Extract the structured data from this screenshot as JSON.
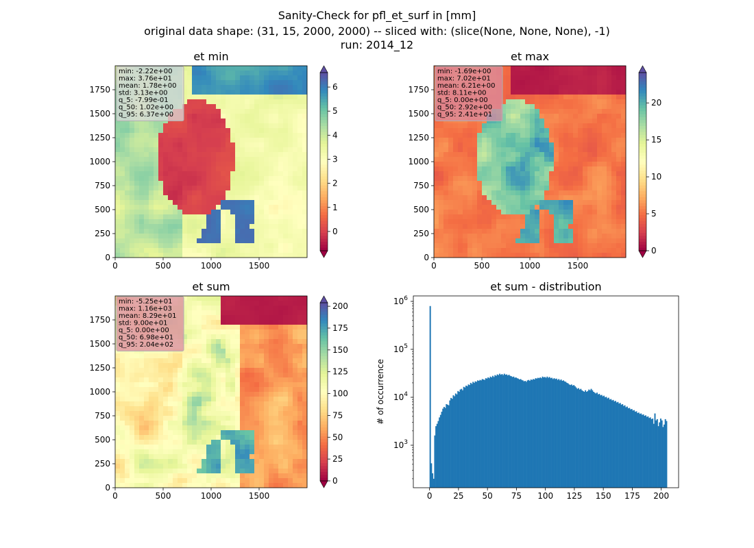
{
  "figure": {
    "title_lines": [
      "Sanity-Check for pfl_et_surf in [mm]",
      "original data shape: (31, 15, 2000, 2000) -- sliced with: (slice(None, None, None), -1)",
      "run: 2014_12"
    ]
  },
  "colormap": [
    "#9e0142",
    "#d53e4f",
    "#f46d43",
    "#fdae61",
    "#fee08b",
    "#ffffbf",
    "#e6f598",
    "#abdda4",
    "#66c2a5",
    "#3288bd",
    "#5e4fa2"
  ],
  "chart_data": [
    {
      "type": "heatmap",
      "id": "et_min",
      "title": "et min",
      "xticks": [
        0,
        500,
        1000,
        1500
      ],
      "yticks": [
        0,
        250,
        500,
        750,
        1000,
        1250,
        1500,
        1750
      ],
      "xlim": [
        0,
        2000
      ],
      "ylim": [
        0,
        2000
      ],
      "colorbar": {
        "vmin": -0.8,
        "vmax": 6.6,
        "ticks": [
          0,
          1,
          2,
          3,
          4,
          5,
          6
        ],
        "extend": "both"
      },
      "stats": [
        "min: -2.22e+00",
        "max: 3.76e+01",
        "mean: 1.78e+00",
        "std: 3.13e+00",
        "q_5: -7.99e-01",
        "q_50: 1.02e+00",
        "q_95: 6.37e+00"
      ]
    },
    {
      "type": "heatmap",
      "id": "et_max",
      "title": "et max",
      "xticks": [
        0,
        500,
        1000,
        1500
      ],
      "yticks": [
        0,
        250,
        500,
        750,
        1000,
        1250,
        1500,
        1750
      ],
      "xlim": [
        0,
        2000
      ],
      "ylim": [
        0,
        2000
      ],
      "colorbar": {
        "vmin": 0,
        "vmax": 24.1,
        "ticks": [
          0,
          5,
          10,
          15,
          20
        ],
        "extend": "both"
      },
      "stats": [
        "min: -1.69e+00",
        "max: 7.02e+01",
        "mean: 6.21e+00",
        "std: 8.11e+00",
        "q_5: 0.00e+00",
        "q_50: 2.92e+00",
        "q_95: 2.41e+01"
      ]
    },
    {
      "type": "heatmap",
      "id": "et_sum",
      "title": "et sum",
      "xticks": [
        0,
        500,
        1000,
        1500
      ],
      "yticks": [
        0,
        250,
        500,
        750,
        1000,
        1250,
        1500,
        1750
      ],
      "xlim": [
        0,
        2000
      ],
      "ylim": [
        0,
        2000
      ],
      "colorbar": {
        "vmin": 0,
        "vmax": 204,
        "ticks": [
          0,
          25,
          50,
          75,
          100,
          125,
          150,
          175,
          200
        ],
        "extend": "both"
      },
      "stats": [
        "min: -5.25e+01",
        "max: 1.16e+03",
        "mean: 8.29e+01",
        "std: 9.00e+01",
        "q_5: 0.00e+00",
        "q_50: 6.98e+01",
        "q_95: 2.04e+02"
      ]
    },
    {
      "type": "bar",
      "id": "et_sum_distribution",
      "title": "et sum - distribution",
      "ylabel": "# of occurrence",
      "yscale": "log",
      "xlim": [
        -14,
        215
      ],
      "ylim": [
        130,
        1300000
      ],
      "xticks": [
        0,
        25,
        50,
        75,
        100,
        125,
        150,
        175,
        200
      ],
      "yticks": [
        1000,
        10000,
        100000,
        1000000
      ],
      "ytick_labels": [
        [
          "10",
          "3"
        ],
        [
          "10",
          "4"
        ],
        [
          "10",
          "5"
        ],
        [
          "10",
          "6"
        ]
      ],
      "color": "#1f77b4",
      "bins": {
        "start": 0,
        "width": 1
      },
      "counts": [
        800000,
        420,
        260,
        200,
        1600,
        2500,
        2800,
        3200,
        3800,
        4300,
        5000,
        5800,
        6300,
        6000,
        7200,
        7000,
        6800,
        8600,
        9700,
        9300,
        11000,
        10500,
        12000,
        11500,
        13500,
        13000,
        14500,
        15000,
        14000,
        16500,
        16000,
        17500,
        17000,
        18500,
        18000,
        20000,
        19000,
        21000,
        20000,
        21500,
        21000,
        22500,
        22000,
        23000,
        22500,
        24000,
        23500,
        23000,
        25000,
        24500,
        26000,
        25000,
        27000,
        26000,
        28000,
        26500,
        29000,
        28000,
        30000,
        29000,
        31000,
        29500,
        30500,
        29000,
        31000,
        29500,
        30000,
        28500,
        29500,
        28000,
        27500,
        26500,
        27000,
        25500,
        26000,
        25000,
        24500,
        23500,
        24000,
        23000,
        22500,
        21500,
        22000,
        21000,
        22500,
        23000,
        22000,
        23500,
        23000,
        24000,
        23500,
        25000,
        24500,
        25500,
        25000,
        26000,
        25000,
        27000,
        26000,
        26500,
        25500,
        27000,
        25500,
        26500,
        25000,
        25500,
        24000,
        25000,
        24000,
        24500,
        23000,
        24000,
        22500,
        23500,
        22000,
        22500,
        21500,
        21000,
        20000,
        19500,
        18500,
        18000,
        18500,
        17500,
        18000,
        17000,
        16000,
        15000,
        15500,
        14500,
        15000,
        14000,
        13500,
        13000,
        14000,
        13000,
        13500,
        14500,
        14000,
        15000,
        14000,
        13000,
        12500,
        12000,
        12500,
        11500,
        11800,
        11000,
        11200,
        10500,
        10800,
        10000,
        10200,
        9500,
        9800,
        9000,
        9200,
        8600,
        8800,
        8200,
        8400,
        7800,
        8000,
        7400,
        7600,
        7000,
        7200,
        6600,
        6800,
        6200,
        6400,
        5900,
        6000,
        5600,
        5700,
        5300,
        5400,
        5000,
        5100,
        4700,
        4800,
        4500,
        4600,
        4300,
        4400,
        4100,
        4200,
        3900,
        4000,
        3700,
        3800,
        3500,
        3600,
        2800,
        4600,
        3300,
        3500,
        2500,
        3000,
        3600,
        3300,
        2400,
        2700,
        3500,
        3200
      ]
    }
  ]
}
